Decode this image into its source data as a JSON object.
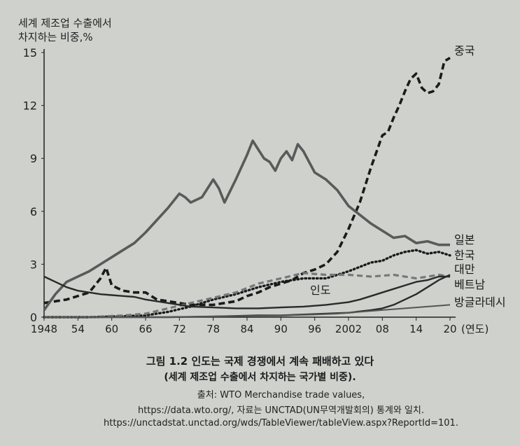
{
  "chart_data": {
    "type": "line",
    "ylabel_lines": [
      "세계 제조업 수출에서",
      "차지하는 비중,%"
    ],
    "xunit_label": "(연도)",
    "ylim": [
      0,
      15
    ],
    "xlim": [
      1948,
      2020
    ],
    "yticks": [
      0,
      3,
      6,
      9,
      12,
      15
    ],
    "xticks": [
      {
        "value": 1948,
        "label": "1948"
      },
      {
        "value": 1954,
        "label": "54"
      },
      {
        "value": 1960,
        "label": "60"
      },
      {
        "value": 1966,
        "label": "66"
      },
      {
        "value": 1972,
        "label": "72"
      },
      {
        "value": 1978,
        "label": "78"
      },
      {
        "value": 1984,
        "label": "84"
      },
      {
        "value": 1990,
        "label": "90"
      },
      {
        "value": 1996,
        "label": "96"
      },
      {
        "value": 2002,
        "label": "2002"
      },
      {
        "value": 2008,
        "label": "08"
      },
      {
        "value": 2014,
        "label": "14"
      },
      {
        "value": 2020,
        "label": "20"
      }
    ],
    "grid": false,
    "series": [
      {
        "name": "중국",
        "style": "dashed-bold",
        "color": "#1a1a1a",
        "x": [
          1948,
          1950,
          1952,
          1954,
          1956,
          1958,
          1959,
          1960,
          1962,
          1964,
          1966,
          1968,
          1970,
          1972,
          1974,
          1976,
          1978,
          1980,
          1982,
          1984,
          1986,
          1988,
          1990,
          1992,
          1994,
          1996,
          1998,
          2000,
          2002,
          2004,
          2006,
          2008,
          2009,
          2010,
          2011,
          2012,
          2013,
          2014,
          2015,
          2016,
          2017,
          2018,
          2019,
          2020
        ],
        "y": [
          0.8,
          0.9,
          1.0,
          1.2,
          1.4,
          2.2,
          2.8,
          1.8,
          1.5,
          1.4,
          1.4,
          1.0,
          0.9,
          0.8,
          0.7,
          0.7,
          0.7,
          0.8,
          0.9,
          1.2,
          1.4,
          1.7,
          1.9,
          2.1,
          2.5,
          2.7,
          3.0,
          3.7,
          5.0,
          6.5,
          8.5,
          10.3,
          10.5,
          11.3,
          12.0,
          12.8,
          13.5,
          13.8,
          13.0,
          12.7,
          12.8,
          13.2,
          14.5,
          14.7
        ]
      },
      {
        "name": "일본",
        "style": "solid-bold",
        "color": "#5a5a5a",
        "x": [
          1948,
          1950,
          1952,
          1954,
          1956,
          1958,
          1960,
          1962,
          1964,
          1966,
          1968,
          1970,
          1972,
          1973,
          1974,
          1976,
          1978,
          1979,
          1980,
          1982,
          1984,
          1985,
          1986,
          1987,
          1988,
          1989,
          1990,
          1991,
          1992,
          1993,
          1994,
          1996,
          1998,
          2000,
          2002,
          2004,
          2006,
          2008,
          2010,
          2012,
          2014,
          2016,
          2018,
          2020
        ],
        "y": [
          0.4,
          1.3,
          2.0,
          2.3,
          2.6,
          3.0,
          3.4,
          3.8,
          4.2,
          4.8,
          5.5,
          6.2,
          7.0,
          6.8,
          6.5,
          6.8,
          7.8,
          7.3,
          6.5,
          7.8,
          9.2,
          10.0,
          9.5,
          9.0,
          8.8,
          8.3,
          9.0,
          9.4,
          8.9,
          9.8,
          9.4,
          8.2,
          7.8,
          7.2,
          6.3,
          5.8,
          5.3,
          4.9,
          4.5,
          4.6,
          4.2,
          4.3,
          4.1,
          4.1
        ]
      },
      {
        "name": "한국",
        "style": "dotted",
        "color": "#1a1a1a",
        "x": [
          1948,
          1956,
          1962,
          1966,
          1970,
          1974,
          1978,
          1982,
          1986,
          1990,
          1994,
          1998,
          2002,
          2006,
          2008,
          2010,
          2012,
          2014,
          2016,
          2018,
          2020
        ],
        "y": [
          0.0,
          0.0,
          0.05,
          0.1,
          0.3,
          0.6,
          1.0,
          1.3,
          1.7,
          2.0,
          2.2,
          2.2,
          2.6,
          3.1,
          3.2,
          3.5,
          3.7,
          3.8,
          3.6,
          3.7,
          3.5
        ]
      },
      {
        "name": "대만",
        "style": "dashed-gray",
        "color": "#777777",
        "x": [
          1948,
          1956,
          1962,
          1966,
          1970,
          1974,
          1978,
          1982,
          1986,
          1990,
          1994,
          1998,
          2002,
          2006,
          2010,
          2014,
          2018,
          2020
        ],
        "y": [
          0.0,
          0.0,
          0.1,
          0.2,
          0.5,
          0.8,
          1.1,
          1.4,
          1.9,
          2.2,
          2.5,
          2.4,
          2.4,
          2.3,
          2.4,
          2.2,
          2.4,
          2.3
        ]
      },
      {
        "name": "베트남",
        "style": "solid",
        "color": "#2a2a2a",
        "x": [
          1948,
          1960,
          1970,
          1980,
          1986,
          1990,
          1994,
          1998,
          2002,
          2006,
          2008,
          2010,
          2012,
          2014,
          2016,
          2018,
          2020
        ],
        "y": [
          0.0,
          0.0,
          0.0,
          0.05,
          0.1,
          0.1,
          0.15,
          0.2,
          0.25,
          0.4,
          0.5,
          0.7,
          1.0,
          1.3,
          1.7,
          2.1,
          2.4
        ]
      },
      {
        "name": "인도",
        "style": "solid",
        "color": "#2a2a2a",
        "x": [
          1948,
          1950,
          1952,
          1954,
          1956,
          1958,
          1960,
          1962,
          1964,
          1966,
          1970,
          1974,
          1978,
          1982,
          1986,
          1990,
          1994,
          1998,
          2002,
          2004,
          2006,
          2008,
          2010,
          2012,
          2014,
          2016,
          2018,
          2020
        ],
        "y": [
          2.3,
          2.0,
          1.7,
          1.5,
          1.4,
          1.3,
          1.25,
          1.2,
          1.15,
          1.0,
          0.8,
          0.6,
          0.55,
          0.5,
          0.5,
          0.55,
          0.6,
          0.7,
          0.85,
          1.0,
          1.2,
          1.4,
          1.6,
          1.8,
          2.0,
          2.1,
          2.3,
          2.3
        ]
      },
      {
        "name": "방글라데시",
        "style": "solid-light",
        "color": "#555555",
        "x": [
          1948,
          1970,
          1980,
          1990,
          1996,
          2000,
          2004,
          2008,
          2012,
          2016,
          2020
        ],
        "y": [
          0.0,
          0.0,
          0.05,
          0.1,
          0.15,
          0.2,
          0.3,
          0.4,
          0.5,
          0.6,
          0.7
        ]
      }
    ],
    "inline_label": {
      "name": "인도",
      "x": 1997,
      "y": 1.3
    }
  },
  "caption": {
    "title": "그림 1.2 인도는 국제 경쟁에서 계속 패배하고 있다",
    "subtitle": "(세계 제조업 수출에서 차지하는 국가별 비중).",
    "source_line1": "출처: WTO Merchandise trade values,",
    "source_line2": "https://data.wto.org/, 자료는 UNCTAD(UN무역개발회의) 통계와 일치.",
    "source_line3": "https://unctadstat.unctad.org/wds/TableViewer/tableView.aspx?ReportId=101."
  }
}
